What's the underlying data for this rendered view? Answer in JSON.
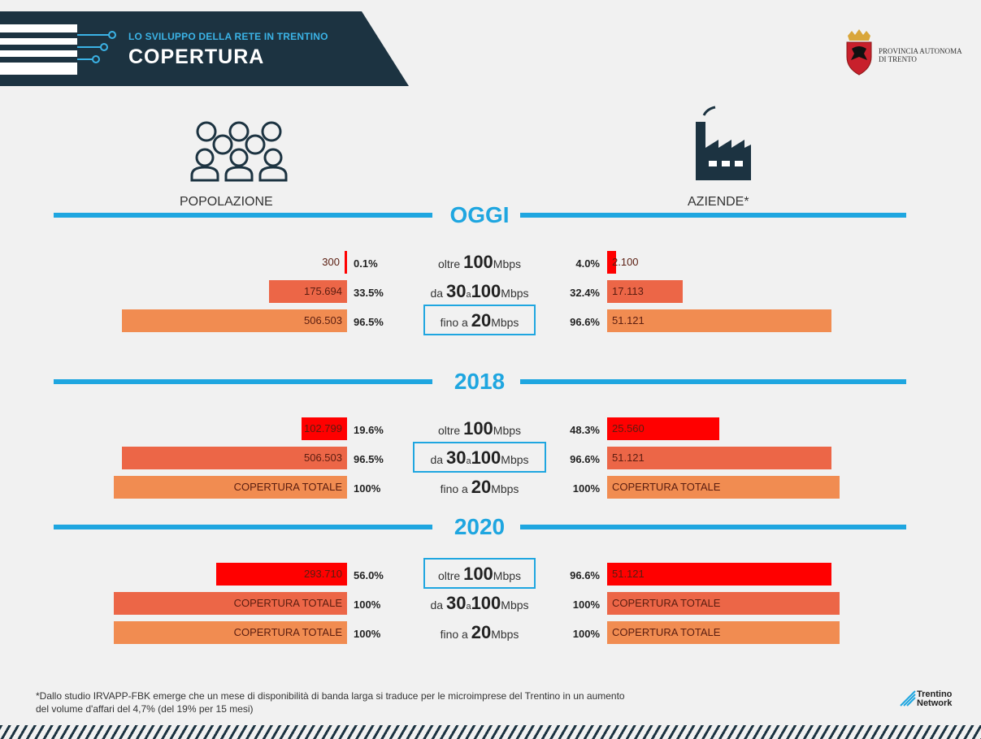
{
  "header": {
    "subtitle": "LO SVILUPPO DELLA RETE IN TRENTINO",
    "title": "COPERTURA"
  },
  "logo": {
    "line1": "PROVINCIA AUTONOMA",
    "line2": "DI TRENTO"
  },
  "columns": {
    "left": "POPOLAZIONE",
    "right": "AZIENDE*"
  },
  "colors": {
    "accent": "#1fa6e0",
    "banner": "#1c3341",
    "tier_100": "#ff0000",
    "tier_30": "#ec6647",
    "tier_20": "#f18c51"
  },
  "chart_data": {
    "type": "bar",
    "orientation": "horizontal-butterfly",
    "categories": [
      "oltre 100 Mbps",
      "da 30 a 100 Mbps",
      "fino a 20 Mbps"
    ],
    "sections": [
      {
        "title": "OGGI",
        "highlighted_tier": 2,
        "rows": [
          {
            "speed": {
              "pre": "oltre",
              "num1": "100",
              "mid": "",
              "num2": "",
              "unit": "Mbps"
            },
            "pop": {
              "label": "300",
              "pct": "0.1%",
              "share": 0.001
            },
            "az": {
              "label": "2.100",
              "pct": "4.0%",
              "share": 0.04
            }
          },
          {
            "speed": {
              "pre": "da",
              "num1": "30",
              "mid": "a",
              "num2": "100",
              "unit": "Mbps"
            },
            "pop": {
              "label": "175.694",
              "pct": "33.5%",
              "share": 0.335
            },
            "az": {
              "label": "17.113",
              "pct": "32.4%",
              "share": 0.324
            }
          },
          {
            "speed": {
              "pre": "fino a",
              "num1": "20",
              "mid": "",
              "num2": "",
              "unit": "Mbps"
            },
            "pop": {
              "label": "506.503",
              "pct": "96.5%",
              "share": 0.965
            },
            "az": {
              "label": "51.121",
              "pct": "96.6%",
              "share": 0.966
            }
          }
        ]
      },
      {
        "title": "2018",
        "highlighted_tier": 1,
        "rows": [
          {
            "speed": {
              "pre": "oltre",
              "num1": "100",
              "mid": "",
              "num2": "",
              "unit": "Mbps"
            },
            "pop": {
              "label": "102.799",
              "pct": "19.6%",
              "share": 0.196
            },
            "az": {
              "label": "25.560",
              "pct": "48.3%",
              "share": 0.483
            }
          },
          {
            "speed": {
              "pre": "da",
              "num1": "30",
              "mid": "a",
              "num2": "100",
              "unit": "Mbps"
            },
            "pop": {
              "label": "506.503",
              "pct": "96.5%",
              "share": 0.965
            },
            "az": {
              "label": "51.121",
              "pct": "96.6%",
              "share": 0.966
            }
          },
          {
            "speed": {
              "pre": "fino a",
              "num1": "20",
              "mid": "",
              "num2": "",
              "unit": "Mbps"
            },
            "pop": {
              "label": "COPERTURA TOTALE",
              "pct": "100%",
              "share": 1.0
            },
            "az": {
              "label": "COPERTURA TOTALE",
              "pct": "100%",
              "share": 1.0
            }
          }
        ]
      },
      {
        "title": "2020",
        "highlighted_tier": 0,
        "rows": [
          {
            "speed": {
              "pre": "oltre",
              "num1": "100",
              "mid": "",
              "num2": "",
              "unit": "Mbps"
            },
            "pop": {
              "label": "293.710",
              "pct": "56.0%",
              "share": 0.56
            },
            "az": {
              "label": "51.121",
              "pct": "96.6%",
              "share": 0.966
            }
          },
          {
            "speed": {
              "pre": "da",
              "num1": "30",
              "mid": "a",
              "num2": "100",
              "unit": "Mbps"
            },
            "pop": {
              "label": "COPERTURA TOTALE",
              "pct": "100%",
              "share": 1.0
            },
            "az": {
              "label": "COPERTURA TOTALE",
              "pct": "100%",
              "share": 1.0
            }
          },
          {
            "speed": {
              "pre": "fino a",
              "num1": "20",
              "mid": "",
              "num2": "",
              "unit": "Mbps"
            },
            "pop": {
              "label": "COPERTURA TOTALE",
              "pct": "100%",
              "share": 1.0
            },
            "az": {
              "label": "COPERTURA TOTALE",
              "pct": "100%",
              "share": 1.0
            }
          }
        ]
      }
    ]
  },
  "footnote": {
    "line1": "*Dallo studio IRVAPP-FBK emerge che un mese di disponibilità di banda larga si traduce per le microimprese del Trentino in un aumento",
    "line2": "del volume d'affari del 4,7% (del 19% per 15 mesi)"
  },
  "footer_logo": {
    "line1": "Trentino",
    "line2": "Network"
  }
}
